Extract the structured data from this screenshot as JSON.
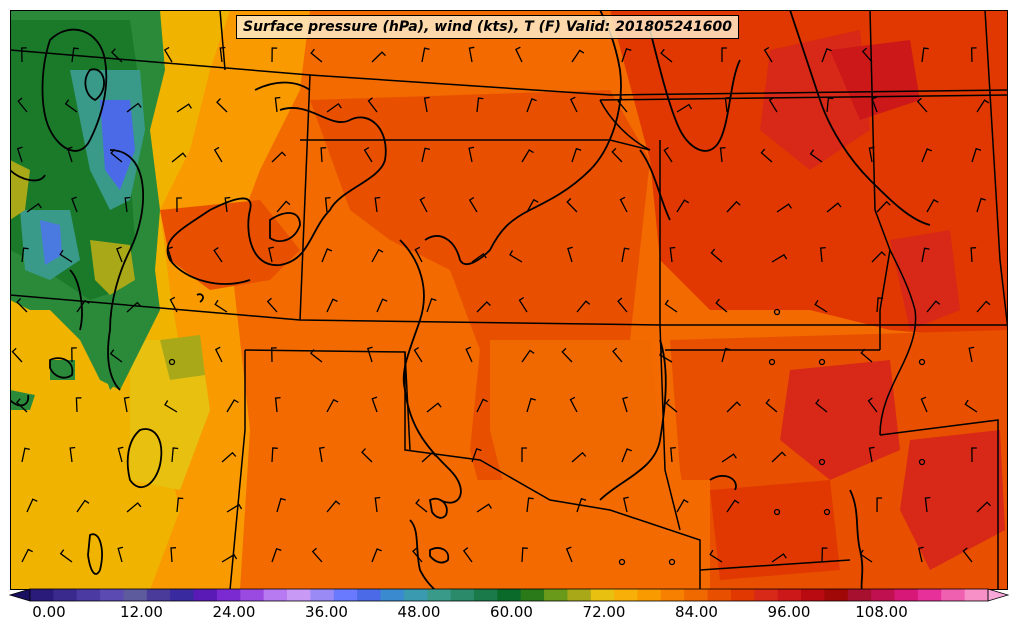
{
  "title": "Surface pressure (hPa), wind (kts), T (F) Valid: 201805241600",
  "colorbar": {
    "tick_labels": [
      "0.00",
      "12.00",
      "24.00",
      "36.00",
      "48.00",
      "60.00",
      "72.00",
      "84.00",
      "96.00",
      "108.00"
    ],
    "colors": [
      "#2a1a7a",
      "#3b2a8e",
      "#4a3aa2",
      "#5a4ab2",
      "#5d5a9e",
      "#4a3a9a",
      "#3a2aa0",
      "#5a1ab5",
      "#7a2ad0",
      "#9a4ae0",
      "#b87af0",
      "#c89af5",
      "#9a8af5",
      "#6a7aff",
      "#4a6ae8",
      "#3a8ad0",
      "#3a9ab0",
      "#3a9a8a",
      "#2a8a6a",
      "#1a7a4a",
      "#0a6a2a",
      "#2a7a1a",
      "#6a9a1a",
      "#a8a818",
      "#e8c010",
      "#f8b008",
      "#f89a00",
      "#f88000",
      "#f06800",
      "#e85000",
      "#e03800",
      "#d82818",
      "#cc1818",
      "#b80a10",
      "#a00808",
      "#a81030",
      "#c01050",
      "#d81878",
      "#e8309a",
      "#f060b0",
      "#f890c8"
    ]
  },
  "legend_icons": [
    "wind-barb-icon",
    "calm-circle-icon"
  ]
}
